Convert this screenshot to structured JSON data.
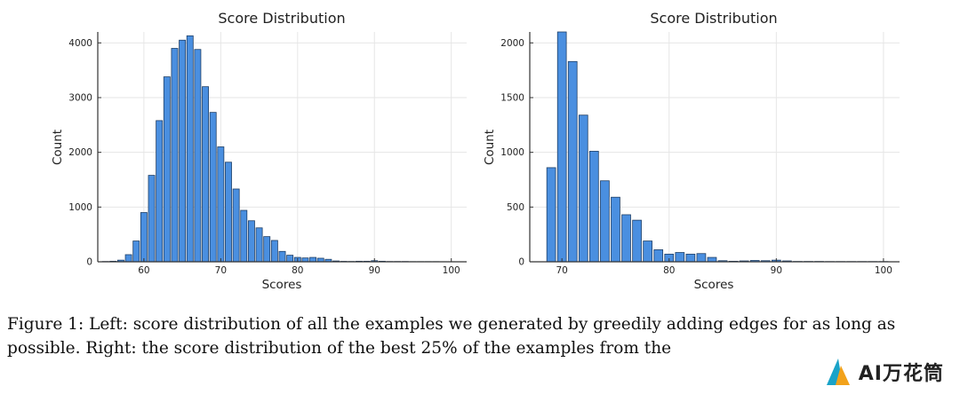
{
  "chart_data": [
    {
      "type": "bar",
      "title": "Score Distribution",
      "xlabel": "Scores",
      "ylabel": "Count",
      "xlim": [
        54,
        102
      ],
      "ylim": [
        0,
        4200
      ],
      "xticks": [
        60,
        70,
        80,
        90,
        100
      ],
      "yticks": [
        0,
        1000,
        2000,
        3000,
        4000
      ],
      "bin_width": 1,
      "grid": true,
      "x": [
        55,
        56,
        57,
        58,
        59,
        60,
        61,
        62,
        63,
        64,
        65,
        66,
        67,
        68,
        69,
        70,
        71,
        72,
        73,
        74,
        75,
        76,
        77,
        78,
        79,
        80,
        81,
        82,
        83,
        84,
        85,
        86,
        87,
        88,
        89,
        90,
        91,
        92,
        93,
        94,
        95,
        96,
        97,
        98,
        99,
        100
      ],
      "values": [
        5,
        10,
        30,
        130,
        380,
        900,
        1580,
        2580,
        3380,
        3900,
        4050,
        4130,
        3880,
        3200,
        2730,
        2100,
        1820,
        1330,
        940,
        750,
        620,
        460,
        390,
        190,
        120,
        80,
        70,
        80,
        65,
        45,
        15,
        8,
        6,
        10,
        10,
        20,
        10,
        5,
        5,
        5,
        3,
        3,
        3,
        3,
        2,
        2
      ]
    },
    {
      "type": "bar",
      "title": "Score Distribution",
      "xlabel": "Scores",
      "ylabel": "Count",
      "xlim": [
        67,
        101.5
      ],
      "ylim": [
        0,
        2100
      ],
      "xticks": [
        70,
        80,
        90,
        100
      ],
      "yticks": [
        0,
        500,
        1000,
        1500,
        2000
      ],
      "bin_width": 1,
      "grid": true,
      "x": [
        69,
        70,
        71,
        72,
        73,
        74,
        75,
        76,
        77,
        78,
        79,
        80,
        81,
        82,
        83,
        84,
        85,
        86,
        87,
        88,
        89,
        90,
        91,
        92,
        93,
        94,
        95,
        96,
        97,
        98,
        99,
        100
      ],
      "values": [
        860,
        2100,
        1830,
        1340,
        1010,
        740,
        590,
        430,
        380,
        190,
        110,
        70,
        85,
        70,
        75,
        40,
        10,
        5,
        8,
        12,
        10,
        15,
        8,
        3,
        3,
        3,
        2,
        2,
        2,
        2,
        2,
        2
      ]
    }
  ],
  "caption": {
    "label": "Figure 1:",
    "text": "Left: score distribution of all the examples we generated by greedily adding edges for as long as possible. Right: the score distribution of the best 25% of the examples from the",
    "watermark_text": "AI万花筒"
  },
  "colors": {
    "bar": "#4a8fe0",
    "bar_edge": "#1f3f66",
    "axis": "#333333",
    "grid": "#e6e6e6"
  }
}
